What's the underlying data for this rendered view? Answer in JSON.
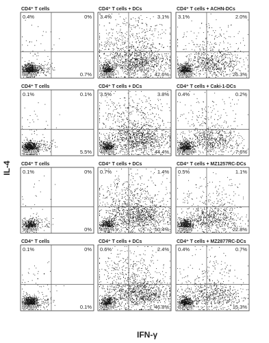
{
  "y_axis_label": "IL-4",
  "x_axis_label": "IFN-γ",
  "rows": [
    {
      "panels": [
        {
          "title": "CD4⁺ T cells",
          "quadrants": [
            "0.4%",
            "0%",
            "98.9%",
            "0.7%"
          ]
        },
        {
          "title": "CD4⁺ T cells + DCs",
          "quadrants": [
            "3.4%",
            "3.1%",
            "50.9%",
            "42.6%"
          ]
        },
        {
          "title": "CD4⁺ T cells + ACHN-DCs",
          "quadrants": [
            "3.1%",
            "2.0%",
            "69.6%",
            "26.3%"
          ]
        }
      ]
    },
    {
      "panels": [
        {
          "title": "CD4⁺ T cells",
          "quadrants": [
            "0.1%",
            "0.1%",
            "94.3%",
            "5.5%"
          ]
        },
        {
          "title": "CD4⁺ T cells + DCs",
          "quadrants": [
            "3.5%",
            "3.8%",
            "48.3%",
            "44.4%"
          ]
        },
        {
          "title": "CD4⁺ T cells + Caki-1-DCs",
          "quadrants": [
            "0.4%",
            "0.2%",
            "91.8%",
            "7.6%"
          ]
        }
      ]
    },
    {
      "panels": [
        {
          "title": "CD4⁺ T cells",
          "quadrants": [
            "0.1%",
            "0%",
            "99.9%",
            "0%"
          ]
        },
        {
          "title": "CD4⁺ T cells + DCs",
          "quadrants": [
            "0.7%",
            "1.4%",
            "47.5%",
            "50.4%"
          ]
        },
        {
          "title": "CD4⁺ T cells + MZ1257RC-DCs",
          "quadrants": [
            "0.5%",
            "1.1%",
            "75.6%",
            "22.8%"
          ]
        }
      ]
    },
    {
      "panels": [
        {
          "title": "CD4⁺ T cells",
          "quadrants": [
            "0.1%",
            "0%",
            "99.8%",
            "0.1%"
          ]
        },
        {
          "title": "CD4⁺ T cells + DCs",
          "quadrants": [
            "0.6%",
            "2.4%",
            "50.2%",
            "46.8%"
          ]
        },
        {
          "title": "CD4⁺ T cells + MZ2877RC-DCs",
          "quadrants": [
            "0.4%",
            "0.7%",
            "83.6%",
            "15.3%"
          ]
        }
      ]
    }
  ]
}
